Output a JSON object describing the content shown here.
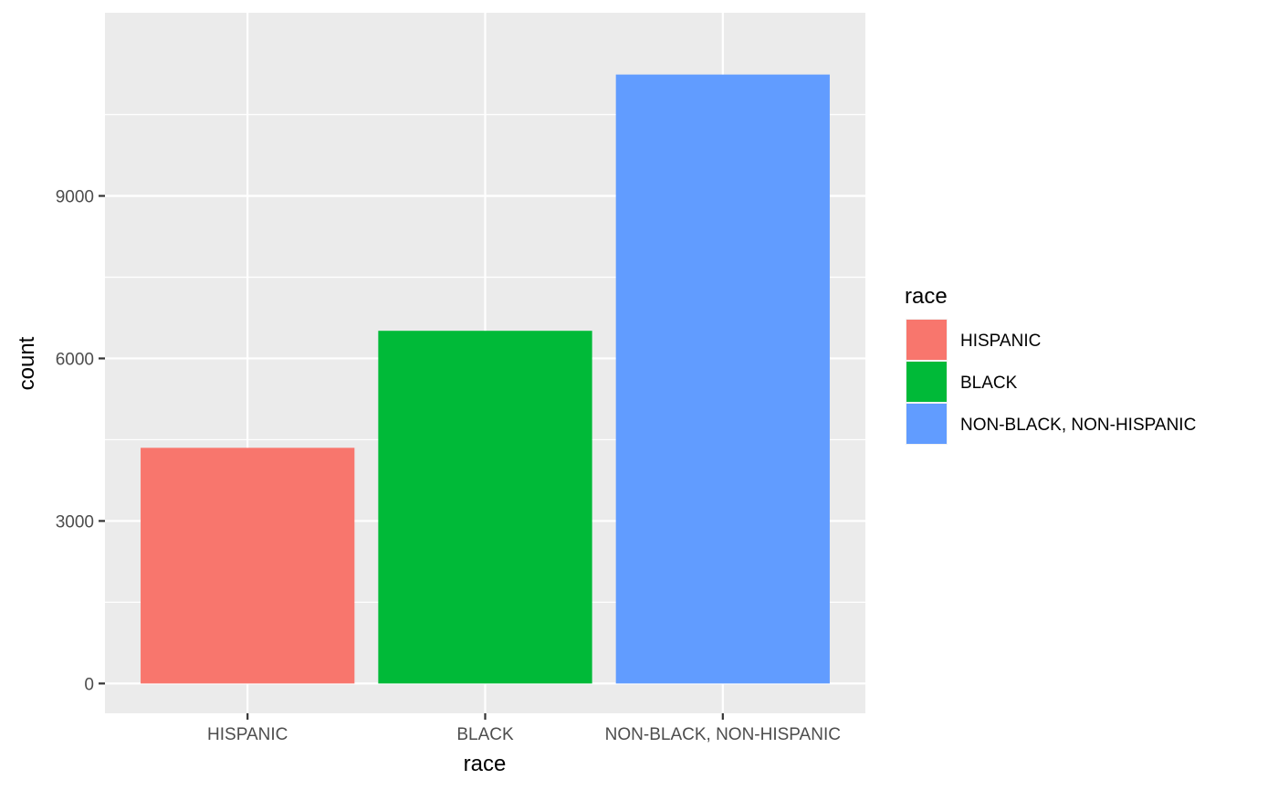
{
  "chart_data": {
    "type": "bar",
    "categories": [
      "HISPANIC",
      "BLACK",
      "NON-BLACK, NON-HISPANIC"
    ],
    "values": [
      4350,
      6510,
      11240
    ],
    "colors": [
      "#F8766D",
      "#00BA38",
      "#619CFF"
    ],
    "xlabel": "race",
    "ylabel": "count",
    "ylim": [
      -550,
      12380
    ],
    "yticks": [
      0,
      3000,
      6000,
      9000
    ],
    "ytick_labels": [
      "0",
      "3000",
      "6000",
      "9000"
    ],
    "grid": true,
    "panel_background": "#EBEBEB",
    "legend": {
      "title": "race",
      "position": "right",
      "items": [
        "HISPANIC",
        "BLACK",
        "NON-BLACK, NON-HISPANIC"
      ]
    }
  }
}
